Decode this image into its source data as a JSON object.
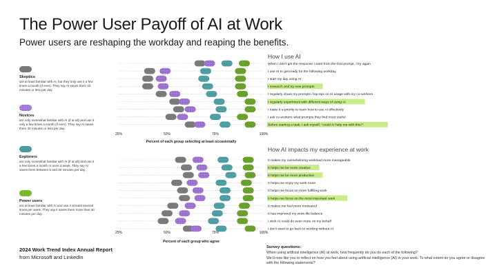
{
  "header": {
    "title": "The Power User Payoff of AI at Work",
    "subtitle": "Power users are reshaping the workday and reaping the benefits."
  },
  "legend": [
    {
      "name": "Skeptics",
      "color": "#7a7a7a",
      "pattern": "solid",
      "desc": "are at least familiar with AI, but they only use it a few times a month (if ever). They say AI saves them 10 minutes or less per day."
    },
    {
      "name": "Novices",
      "color": "#8e5fc8",
      "pattern": "dots",
      "desc": "are only somewhat familiar with AI (if at all) and use it only a few times a month (if ever). They say AI saves them 30 minutes or less per day."
    },
    {
      "name": "Explorers",
      "color": "#3b8f95",
      "pattern": "grid",
      "desc": "are only somewhat familiar with AI (if at all) and use it a few times a month or once a week. They say AI saves them between 5 and 30 minutes per day."
    },
    {
      "name": "Power users",
      "color": "#86c23a",
      "pattern": "checker",
      "desc": "are at least familiar with AI and use it at least several times per week. They say it saves them more than 30 minutes per day."
    }
  ],
  "sections": {
    "usage_heading": "How I use AI",
    "impact_heading": "How AI impacts my experience at work"
  },
  "colors": {
    "highlight": "#c8ec8a",
    "dotted_line": "#bdbdbd"
  },
  "chart_data": [
    {
      "type": "scatter",
      "title": "How I use AI",
      "xlabel": "Percent of each group selecting at least occasionally",
      "xlim": [
        25,
        100
      ],
      "xticks": [
        "25%",
        "50%",
        "75%",
        "100%"
      ],
      "series_names": [
        "Skeptics",
        "Novices",
        "Explorers",
        "Power users"
      ],
      "rows": [
        {
          "label": "When I don't get the response I want from the first prompt, I try again",
          "highlight": false,
          "values": [
            67,
            72,
            81,
            90
          ]
        },
        {
          "label": "I use AI to get ready for the following workday",
          "highlight": false,
          "values": [
            41,
            49,
            70,
            88
          ]
        },
        {
          "label": "I start my day using AI",
          "highlight": false,
          "values": [
            40,
            47,
            69,
            88
          ]
        },
        {
          "label": "I research and try new prompts",
          "highlight": true,
          "values": [
            40,
            48,
            71,
            88
          ]
        },
        {
          "label": "I regularly share my prompts / top tips on AI usage with my co-workers",
          "highlight": false,
          "values": [
            47,
            54,
            73,
            89
          ]
        },
        {
          "label": "I regularly experiment with different ways of using AI",
          "highlight": true,
          "values": [
            54,
            59,
            77,
            93
          ]
        },
        {
          "label": "I make it a priority to learn how to use AI effectively",
          "highlight": false,
          "values": [
            56,
            62,
            78,
            93
          ]
        },
        {
          "label": "I ask co-workers what prompts they find most useful",
          "highlight": false,
          "values": [
            52,
            58,
            75,
            89
          ]
        },
        {
          "label": "Before starting a task, I ask myself, \"could AI help me with this?\"",
          "highlight": true,
          "values": [
            62,
            67,
            80,
            93
          ]
        }
      ]
    },
    {
      "type": "scatter",
      "title": "How AI impacts my experience at work",
      "xlabel": "Percent of each group who agree",
      "xlim": [
        25,
        100
      ],
      "xticks": [
        "25%",
        "50%",
        "75%",
        "100%"
      ],
      "series_names": [
        "Skeptics",
        "Novices",
        "Explorers",
        "Power users"
      ],
      "rows": [
        {
          "label": "It makes my overwhelming workload more manageable",
          "highlight": false,
          "values": [
            57,
            66,
            79,
            92
          ]
        },
        {
          "label": "It helps me be more creative",
          "highlight": true,
          "values": [
            60,
            68,
            81,
            92
          ]
        },
        {
          "label": "It helps me be more productive",
          "highlight": true,
          "values": [
            61,
            69,
            83,
            93
          ]
        },
        {
          "label": "It helps me enjoy my work more",
          "highlight": false,
          "values": [
            55,
            63,
            78,
            91
          ]
        },
        {
          "label": "It helps me focus on more fulfilling work",
          "highlight": false,
          "values": [
            58,
            66,
            80,
            92
          ]
        },
        {
          "label": "It helps me focus on the most important work",
          "highlight": true,
          "values": [
            59,
            67,
            80,
            92
          ]
        },
        {
          "label": "It makes me feel more motivated",
          "highlight": false,
          "values": [
            53,
            62,
            77,
            90
          ]
        },
        {
          "label": "It has improved my work-life balance",
          "highlight": false,
          "values": [
            50,
            59,
            76,
            89
          ]
        },
        {
          "label": "I wish AI could do even more on my behalf",
          "highlight": false,
          "values": [
            48,
            57,
            74,
            89
          ]
        },
        {
          "label": "I don't want to go back to working without AI",
          "highlight": false,
          "values": [
            61,
            65,
            78,
            93
          ]
        }
      ]
    }
  ],
  "footer": {
    "report_title": "2024 Work Trend Index Annual Report",
    "report_source": "from Microsoft and LinkedIn",
    "survey_heading": "Survey questions:",
    "survey_q1": "When using artificial intelligence (AI) at work, how frequently do you do each of the following?",
    "survey_q2": "We'd now like you to reflect on how you feel about using artificial intelligence (AI) in your work. To what extent do you agree or disagree with the following statements?"
  }
}
